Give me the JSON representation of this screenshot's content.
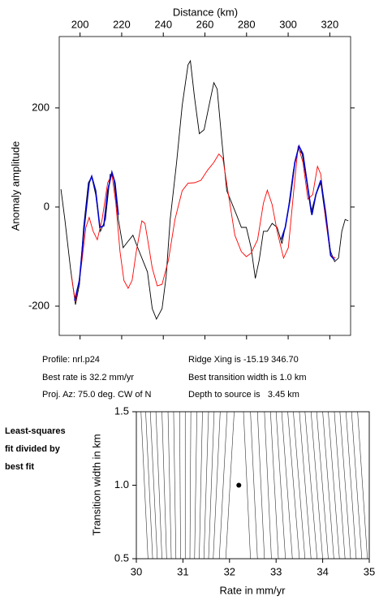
{
  "chart_data": [
    {
      "type": "line",
      "x_label": "Distance (km)",
      "y_label": "Anomaly amplitude",
      "xlim": [
        190,
        330
      ],
      "ylim": [
        -259,
        344
      ],
      "xticks": [
        200,
        220,
        240,
        260,
        280,
        300,
        320
      ],
      "yticks": [
        -200,
        0,
        200
      ],
      "series": [
        {
          "color": "#000000",
          "x": [
            190.8,
            192.7,
            195.4,
            197.8,
            199.7,
            201.7,
            204,
            205.6,
            207.5,
            209.8,
            212.2,
            214.5,
            216.1,
            218.4,
            220.7,
            223.1,
            225.4,
            227.7,
            230.1,
            232.4,
            234.7,
            236.7,
            239.4,
            241.4,
            243.3,
            246.4,
            249.1,
            251.9,
            253,
            255,
            257.3,
            259.6,
            262,
            264.3,
            265.9,
            268.2,
            270.5,
            272.9,
            275.2,
            277.5,
            279.9,
            282.2,
            284.2,
            286.1,
            288.1,
            290,
            292.3,
            294.7,
            297,
            299.7,
            302.5,
            304.8,
            306.7,
            308.7,
            311,
            313.3,
            315.7,
            317.6,
            320.4,
            322.3,
            324.2,
            325.8,
            327.4,
            328.9
          ],
          "values": [
            36,
            -25,
            -123,
            -197,
            -156,
            -41,
            49,
            61,
            25,
            -49,
            -25,
            66,
            61,
            -25,
            -82,
            -69,
            -57,
            -82,
            -107,
            -131,
            -205,
            -226,
            -205,
            -139,
            -25,
            90,
            205,
            287,
            295,
            221,
            148,
            156,
            205,
            251,
            238,
            131,
            33,
            8,
            -16,
            -41,
            -41,
            -82,
            -144,
            -107,
            -49,
            -49,
            -33,
            -41,
            -74,
            -16,
            74,
            118,
            107,
            57,
            -11,
            25,
            49,
            -11,
            -90,
            -110,
            -103,
            -49,
            -25,
            -28
          ]
        },
        {
          "color": "#ff0000",
          "x": [
            195.8,
            197.8,
            200.5,
            202.8,
            204.4,
            206.3,
            208.3,
            210.6,
            213.3,
            215.3,
            217.2,
            219.2,
            221.1,
            223.1,
            225,
            227,
            229.7,
            231.2,
            232.8,
            234.7,
            237.1,
            239.4,
            242.5,
            245.6,
            249.1,
            251.9,
            255,
            258.1,
            261.2,
            264.3,
            266.7,
            268.6,
            271.3,
            274.4,
            277.5,
            279.9,
            282.2,
            285.3,
            288.1,
            290,
            292.3,
            294.7,
            297.8,
            300.1,
            302.5,
            304.8,
            307.1,
            309.5,
            311.8,
            314.1,
            315.7,
            318,
            320.4,
            322.7
          ],
          "values": [
            -139,
            -192,
            -123,
            -41,
            -21,
            -49,
            -66,
            -25,
            49,
            66,
            8,
            -90,
            -148,
            -164,
            -148,
            -90,
            -28,
            -33,
            -74,
            -123,
            -159,
            -156,
            -107,
            -25,
            33,
            48,
            49,
            54,
            74,
            90,
            107,
            98,
            25,
            -57,
            -90,
            -100,
            -93,
            -66,
            8,
            34,
            5,
            -49,
            -103,
            -82,
            25,
            123,
            90,
            16,
            25,
            82,
            66,
            -25,
            -98,
            -103
          ]
        },
        {
          "color": "#0000cc",
          "x": [
            197.4,
            199.7,
            202.1,
            204.4,
            205.6,
            207.5,
            209.5,
            211.4,
            213.3,
            215.3,
            216.8,
            218.4,
            null,
            296.6,
            298.6,
            300.9,
            303.2,
            305.2,
            307.1,
            309.5,
            311.4,
            313.3,
            315.7,
            318,
            320.4,
            322.3
          ],
          "values": [
            -189,
            -148,
            -38,
            49,
            62,
            33,
            -41,
            -38,
            33,
            70,
            49,
            -16,
            null,
            -66,
            -41,
            16,
            90,
            123,
            107,
            38,
            -16,
            25,
            54,
            -11,
            -98,
            -107
          ]
        }
      ]
    },
    {
      "type": "contour",
      "x_label": "Rate in mm/yr",
      "y_label": "Transition width in km",
      "xlim": [
        30,
        35
      ],
      "ylim": [
        0.5,
        1.5
      ],
      "xticks": [
        30,
        31,
        32,
        33,
        34,
        35
      ],
      "yticks": [
        0.5,
        {
          "value": 1,
          "label": "1.0"
        },
        1.5
      ],
      "best_fit": {
        "x": 32.2,
        "y": 1.0
      },
      "contours": {
        "rate_at_bottom": [
          30.25,
          30.35,
          30.45,
          30.55,
          30.65,
          30.75,
          30.85,
          30.95,
          31.05,
          31.15,
          31.25,
          31.35,
          31.45,
          31.55,
          31.65,
          31.78,
          31.92,
          32.45,
          32.6,
          32.75,
          32.9,
          33.05,
          33.2,
          33.35,
          33.5,
          33.62,
          33.75,
          33.88,
          34.0,
          34.12,
          34.24,
          34.36,
          34.48,
          34.6,
          34.72,
          34.84,
          34.96
        ],
        "rate_at_top": [
          30.1,
          30.2,
          30.3,
          30.42,
          30.55,
          30.68,
          30.8,
          30.93,
          31.05,
          31.17,
          31.3,
          31.42,
          31.55,
          31.67,
          31.8,
          31.95,
          32.1,
          32.3,
          32.45,
          32.6,
          32.75,
          32.88,
          33.0,
          33.12,
          33.25,
          33.37,
          33.5,
          33.62,
          33.75,
          33.87,
          34.0,
          34.12,
          34.25,
          34.37,
          34.5,
          34.62,
          34.75
        ]
      }
    }
  ],
  "info": {
    "profile": "Profile: nrl.p24",
    "best_rate": "Best rate is 32.2 mm/yr",
    "proj_az": "Proj. Az: 75.0 deg. CW of N",
    "ridge_xing": "Ridge Xing is -15.19 346.70",
    "transition": "Best transition width is 1.0 km",
    "depth": "Depth to source is   3.45 km"
  },
  "side_note": [
    "Least-squares",
    "fit divided by",
    "best fit"
  ]
}
